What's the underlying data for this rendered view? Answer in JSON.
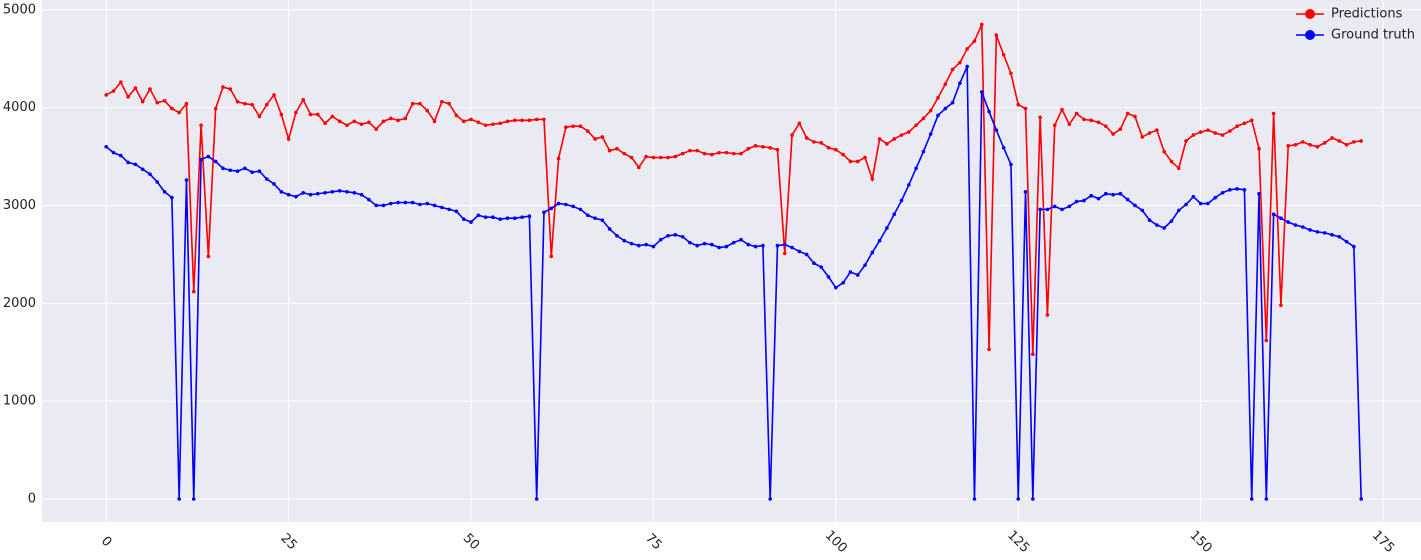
{
  "chart_data": {
    "type": "line",
    "x": [
      0,
      1,
      2,
      3,
      4,
      5,
      6,
      7,
      8,
      9,
      10,
      11,
      12,
      13,
      14,
      15,
      16,
      17,
      18,
      19,
      20,
      21,
      22,
      23,
      24,
      25,
      26,
      27,
      28,
      29,
      30,
      31,
      32,
      33,
      34,
      35,
      36,
      37,
      38,
      39,
      40,
      41,
      42,
      43,
      44,
      45,
      46,
      47,
      48,
      49,
      50,
      51,
      52,
      53,
      54,
      55,
      56,
      57,
      58,
      59,
      60,
      61,
      62,
      63,
      64,
      65,
      66,
      67,
      68,
      69,
      70,
      71,
      72,
      73,
      74,
      75,
      76,
      77,
      78,
      79,
      80,
      81,
      82,
      83,
      84,
      85,
      86,
      87,
      88,
      89,
      90,
      91,
      92,
      93,
      94,
      95,
      96,
      97,
      98,
      99,
      100,
      101,
      102,
      103,
      104,
      105,
      106,
      107,
      108,
      109,
      110,
      111,
      112,
      113,
      114,
      115,
      116,
      117,
      118,
      119,
      120,
      121,
      122,
      123,
      124,
      125,
      126,
      127,
      128,
      129,
      130,
      131,
      132,
      133,
      134,
      135,
      136,
      137,
      138,
      139,
      140,
      141,
      142,
      143,
      144,
      145,
      146,
      147,
      148,
      149,
      150,
      151,
      152,
      153,
      154,
      155,
      156,
      157,
      158,
      159,
      160,
      161,
      162,
      163,
      164,
      165,
      166,
      167,
      168,
      169,
      170,
      171,
      172
    ],
    "series": [
      {
        "name": "Predictions",
        "color": "#ff0000",
        "values": [
          4130,
          4170,
          4260,
          4110,
          4200,
          4060,
          4190,
          4050,
          4070,
          3990,
          3950,
          4040,
          2120,
          3820,
          2480,
          3990,
          4210,
          4190,
          4060,
          4040,
          4030,
          3910,
          4030,
          4130,
          3930,
          3680,
          3950,
          4080,
          3930,
          3930,
          3840,
          3910,
          3860,
          3820,
          3860,
          3830,
          3850,
          3780,
          3860,
          3890,
          3870,
          3890,
          4040,
          4040,
          3970,
          3860,
          4060,
          4040,
          3920,
          3860,
          3880,
          3850,
          3820,
          3830,
          3840,
          3860,
          3870,
          3870,
          3870,
          3880,
          3880,
          2480,
          3480,
          3800,
          3810,
          3810,
          3760,
          3680,
          3700,
          3560,
          3580,
          3530,
          3490,
          3390,
          3500,
          3490,
          3490,
          3490,
          3500,
          3530,
          3560,
          3560,
          3530,
          3520,
          3540,
          3540,
          3530,
          3530,
          3580,
          3610,
          3600,
          3590,
          3570,
          2510,
          3720,
          3840,
          3690,
          3650,
          3640,
          3590,
          3570,
          3520,
          3450,
          3450,
          3490,
          3270,
          3680,
          3630,
          3680,
          3720,
          3750,
          3820,
          3890,
          3970,
          4100,
          4240,
          4390,
          4460,
          4600,
          4680,
          4850,
          1530,
          4740,
          4540,
          4350,
          4030,
          3990,
          1480,
          3900,
          1880,
          3820,
          3980,
          3830,
          3940,
          3880,
          3870,
          3850,
          3810,
          3730,
          3780,
          3940,
          3910,
          3700,
          3740,
          3770,
          3550,
          3450,
          3380,
          3660,
          3720,
          3750,
          3770,
          3740,
          3720,
          3760,
          3810,
          3840,
          3870,
          3580,
          1620,
          3940,
          1980,
          3610,
          3620,
          3650,
          3620,
          3600,
          3640,
          3690,
          3660,
          3620,
          3650,
          3660
        ]
      },
      {
        "name": "Ground truth",
        "color": "#0000ff",
        "values": [
          3600,
          3540,
          3510,
          3440,
          3420,
          3370,
          3320,
          3240,
          3140,
          3080,
          0,
          3260,
          0,
          3470,
          3500,
          3450,
          3380,
          3360,
          3350,
          3380,
          3340,
          3350,
          3270,
          3220,
          3140,
          3110,
          3090,
          3130,
          3110,
          3120,
          3130,
          3140,
          3150,
          3140,
          3130,
          3110,
          3060,
          3000,
          3000,
          3020,
          3030,
          3030,
          3030,
          3010,
          3020,
          3000,
          2980,
          2960,
          2940,
          2860,
          2830,
          2900,
          2880,
          2880,
          2860,
          2870,
          2870,
          2880,
          2890,
          0,
          2930,
          2970,
          3020,
          3010,
          2990,
          2960,
          2900,
          2870,
          2850,
          2760,
          2690,
          2640,
          2610,
          2590,
          2600,
          2580,
          2650,
          2690,
          2700,
          2680,
          2620,
          2590,
          2610,
          2600,
          2570,
          2580,
          2620,
          2650,
          2600,
          2580,
          2590,
          0,
          2590,
          2600,
          2570,
          2530,
          2500,
          2410,
          2370,
          2270,
          2160,
          2210,
          2320,
          2290,
          2390,
          2520,
          2640,
          2770,
          2910,
          3050,
          3210,
          3380,
          3550,
          3730,
          3920,
          3990,
          4050,
          4250,
          4420,
          0,
          4160,
          3960,
          3770,
          3590,
          3420,
          0,
          3140,
          0,
          2960,
          2960,
          2990,
          2960,
          2990,
          3040,
          3050,
          3100,
          3070,
          3120,
          3110,
          3120,
          3060,
          3000,
          2950,
          2850,
          2800,
          2770,
          2840,
          2950,
          3010,
          3090,
          3020,
          3020,
          3080,
          3130,
          3160,
          3170,
          3160,
          0,
          3120,
          0,
          2910,
          2870,
          2830,
          2800,
          2780,
          2750,
          2730,
          2720,
          2700,
          2680,
          2630,
          2580,
          0
        ]
      }
    ],
    "xlim": [
      -8.8,
      180.2
    ],
    "ylim": [
      -235,
      5100
    ],
    "xticks": [
      0,
      25,
      50,
      75,
      100,
      125,
      150,
      175
    ],
    "yticks": [
      0,
      1000,
      2000,
      3000,
      4000,
      5000
    ],
    "grid": true,
    "legend": "upper right"
  }
}
